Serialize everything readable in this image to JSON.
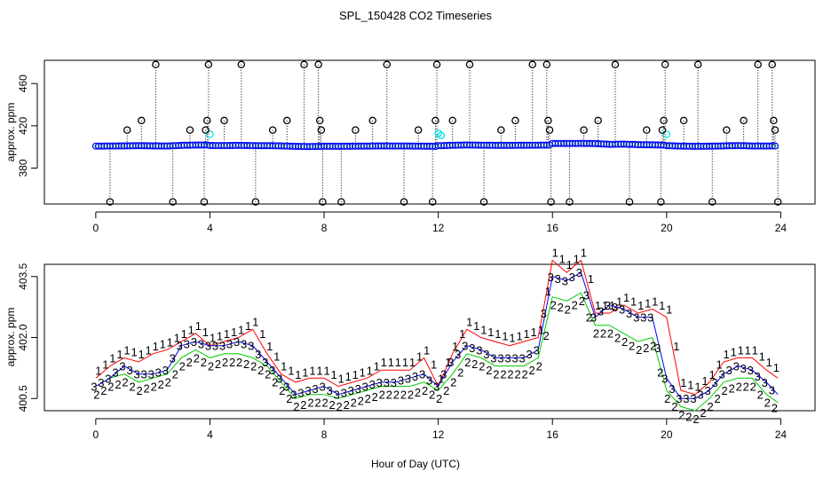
{
  "figure": {
    "title": "SPL_150428  CO2 Timeseries",
    "xlabel": "Hour of Day (UTC)"
  },
  "colors": {
    "background": "#ffffff",
    "axis": "#000000",
    "points_blue": "#0000ff",
    "points_green": "#00cc00",
    "points_cyan": "#00e5ee",
    "series_1": "#ff0000",
    "series_2": "#00cc00",
    "series_3": "#0000ff",
    "flag_marker": "#000000"
  },
  "chart_data": [
    {
      "type": "scatter",
      "title": "",
      "xlabel": "",
      "ylabel": "approx. ppm",
      "xlim": [
        -1.8,
        25.2
      ],
      "ylim": [
        346,
        482
      ],
      "x_ticks": [
        0,
        4,
        8,
        12,
        16,
        20,
        24
      ],
      "x_tick_labels": [
        "0",
        "4",
        "8",
        "12",
        "16",
        "20",
        "24"
      ],
      "y_ticks": [
        380,
        420,
        460
      ],
      "y_tick_labels": [
        "380",
        "420",
        "460"
      ],
      "baseline": {
        "x": [
          0.0,
          0.5,
          1.0,
          1.5,
          2.0,
          2.5,
          3.0,
          3.5,
          3.9,
          4.0,
          4.5,
          5.0,
          5.5,
          6.0,
          6.5,
          7.0,
          7.5,
          7.9,
          8.0,
          8.5,
          9.0,
          9.5,
          10.0,
          10.5,
          11.0,
          11.5,
          11.9,
          12.0,
          12.5,
          13.0,
          13.5,
          14.0,
          14.5,
          15.0,
          15.5,
          15.9,
          16.0,
          16.5,
          17.0,
          17.5,
          18.0,
          18.5,
          19.0,
          19.5,
          19.9,
          20.0,
          20.5,
          21.0,
          21.5,
          22.0,
          22.5,
          23.0,
          23.5,
          23.9
        ],
        "y": [
          400.8,
          400.9,
          401.0,
          401.2,
          401.0,
          400.9,
          401.5,
          401.8,
          401.9,
          401.4,
          401.3,
          401.5,
          401.3,
          401.2,
          401.0,
          400.6,
          400.4,
          400.6,
          400.7,
          400.6,
          400.7,
          400.8,
          401.0,
          400.9,
          400.9,
          400.7,
          400.6,
          401.2,
          401.6,
          401.9,
          401.7,
          401.5,
          401.5,
          401.6,
          401.7,
          401.8,
          403.3,
          403.3,
          403.4,
          403.2,
          402.5,
          402.7,
          402.2,
          402.0,
          401.8,
          401.2,
          400.8,
          400.6,
          400.7,
          401.0,
          401.3,
          400.9,
          400.9,
          401.0
        ]
      },
      "cyan_points": [
        {
          "x": 4.0,
          "y": 412
        },
        {
          "x": 12.0,
          "y": 413
        },
        {
          "x": 12.1,
          "y": 411
        },
        {
          "x": 20.0,
          "y": 412
        }
      ],
      "flagged_points": [
        {
          "x": 0.5,
          "y": 348
        },
        {
          "x": 1.1,
          "y": 416
        },
        {
          "x": 1.6,
          "y": 425
        },
        {
          "x": 2.1,
          "y": 478
        },
        {
          "x": 2.7,
          "y": 348
        },
        {
          "x": 3.3,
          "y": 416
        },
        {
          "x": 3.8,
          "y": 348
        },
        {
          "x": 3.85,
          "y": 416
        },
        {
          "x": 3.9,
          "y": 425
        },
        {
          "x": 3.95,
          "y": 478
        },
        {
          "x": 4.5,
          "y": 425
        },
        {
          "x": 5.1,
          "y": 478
        },
        {
          "x": 5.6,
          "y": 348
        },
        {
          "x": 6.2,
          "y": 416
        },
        {
          "x": 6.7,
          "y": 425
        },
        {
          "x": 7.3,
          "y": 478
        },
        {
          "x": 7.8,
          "y": 478
        },
        {
          "x": 7.85,
          "y": 425
        },
        {
          "x": 7.9,
          "y": 416
        },
        {
          "x": 7.95,
          "y": 348
        },
        {
          "x": 8.6,
          "y": 348
        },
        {
          "x": 9.1,
          "y": 416
        },
        {
          "x": 9.7,
          "y": 425
        },
        {
          "x": 10.2,
          "y": 478
        },
        {
          "x": 10.8,
          "y": 348
        },
        {
          "x": 11.3,
          "y": 416
        },
        {
          "x": 11.8,
          "y": 348
        },
        {
          "x": 11.9,
          "y": 425
        },
        {
          "x": 11.95,
          "y": 478
        },
        {
          "x": 12.5,
          "y": 425
        },
        {
          "x": 13.1,
          "y": 478
        },
        {
          "x": 13.6,
          "y": 348
        },
        {
          "x": 14.2,
          "y": 416
        },
        {
          "x": 14.7,
          "y": 425
        },
        {
          "x": 15.3,
          "y": 478
        },
        {
          "x": 15.8,
          "y": 478
        },
        {
          "x": 15.85,
          "y": 425
        },
        {
          "x": 15.9,
          "y": 416
        },
        {
          "x": 15.95,
          "y": 348
        },
        {
          "x": 16.6,
          "y": 348
        },
        {
          "x": 17.1,
          "y": 416
        },
        {
          "x": 17.6,
          "y": 425
        },
        {
          "x": 18.2,
          "y": 478
        },
        {
          "x": 18.7,
          "y": 348
        },
        {
          "x": 19.3,
          "y": 416
        },
        {
          "x": 19.8,
          "y": 348
        },
        {
          "x": 19.85,
          "y": 416
        },
        {
          "x": 19.9,
          "y": 425
        },
        {
          "x": 19.95,
          "y": 478
        },
        {
          "x": 20.6,
          "y": 425
        },
        {
          "x": 21.1,
          "y": 478
        },
        {
          "x": 21.6,
          "y": 348
        },
        {
          "x": 22.1,
          "y": 416
        },
        {
          "x": 22.7,
          "y": 425
        },
        {
          "x": 23.2,
          "y": 478
        },
        {
          "x": 23.7,
          "y": 478
        },
        {
          "x": 23.75,
          "y": 425
        },
        {
          "x": 23.8,
          "y": 416
        },
        {
          "x": 23.9,
          "y": 348
        }
      ]
    },
    {
      "type": "line",
      "title": "",
      "xlabel": "Hour of Day (UTC)",
      "ylabel": "approx. ppm",
      "xlim": [
        -1.8,
        25.2
      ],
      "ylim": [
        400.2,
        403.8
      ],
      "x_ticks": [
        0,
        4,
        8,
        12,
        16,
        20,
        24
      ],
      "x_tick_labels": [
        "0",
        "4",
        "8",
        "12",
        "16",
        "20",
        "24"
      ],
      "y_ticks": [
        400.5,
        402.0,
        403.5
      ],
      "y_tick_labels": [
        "400.5",
        "402.0",
        "403.5"
      ],
      "x": [
        0.0,
        0.5,
        1.0,
        1.5,
        2.0,
        2.5,
        3.0,
        3.5,
        4.0,
        4.5,
        5.0,
        5.5,
        6.0,
        6.5,
        7.0,
        7.5,
        8.0,
        8.5,
        9.0,
        9.5,
        10.0,
        10.5,
        11.0,
        11.5,
        12.0,
        12.5,
        13.0,
        13.5,
        14.0,
        14.5,
        15.0,
        15.5,
        16.0,
        16.5,
        17.0,
        17.5,
        18.0,
        18.5,
        19.0,
        19.5,
        20.0,
        20.5,
        21.0,
        21.5,
        22.0,
        22.5,
        23.0,
        23.5,
        23.9
      ],
      "series": [
        {
          "name": "1",
          "symbol": "1",
          "values": [
            401.0,
            401.3,
            401.5,
            401.4,
            401.6,
            401.7,
            401.9,
            402.1,
            401.8,
            401.9,
            402.0,
            402.2,
            401.6,
            401.1,
            400.9,
            401.0,
            401.0,
            400.8,
            400.9,
            401.0,
            401.2,
            401.2,
            401.2,
            401.5,
            400.8,
            401.6,
            402.2,
            402.0,
            401.9,
            401.8,
            401.9,
            402.0,
            403.9,
            403.6,
            403.9,
            402.6,
            402.6,
            402.8,
            402.6,
            402.7,
            402.5,
            400.7,
            400.6,
            400.9,
            401.4,
            401.5,
            401.5,
            401.2,
            401.0
          ]
        },
        {
          "name": "2",
          "symbol": "2",
          "values": [
            400.8,
            401.0,
            401.1,
            400.9,
            401.0,
            401.1,
            401.5,
            401.7,
            401.5,
            401.6,
            401.6,
            401.5,
            401.3,
            400.9,
            400.5,
            400.6,
            400.6,
            400.5,
            400.6,
            400.7,
            400.8,
            400.8,
            400.8,
            400.9,
            400.7,
            401.1,
            401.6,
            401.5,
            401.3,
            401.3,
            401.3,
            401.5,
            403.0,
            402.9,
            403.1,
            402.3,
            402.3,
            402.1,
            401.9,
            402.0,
            400.7,
            400.3,
            400.2,
            400.5,
            400.9,
            401.0,
            401.0,
            400.6,
            400.4
          ]
        },
        {
          "name": "3",
          "symbol": "3",
          "values": [
            400.8,
            401.0,
            401.3,
            401.1,
            401.1,
            401.2,
            401.8,
            401.9,
            401.8,
            401.8,
            401.9,
            401.8,
            401.4,
            401.0,
            400.6,
            400.7,
            400.8,
            400.6,
            400.7,
            400.8,
            400.9,
            400.9,
            401.0,
            401.1,
            400.8,
            401.4,
            401.8,
            401.7,
            401.5,
            401.5,
            401.5,
            401.7,
            403.5,
            403.4,
            403.6,
            402.5,
            402.8,
            402.7,
            402.5,
            402.5,
            401.0,
            400.5,
            400.5,
            400.7,
            401.1,
            401.3,
            401.2,
            400.9,
            400.6
          ]
        }
      ]
    }
  ]
}
